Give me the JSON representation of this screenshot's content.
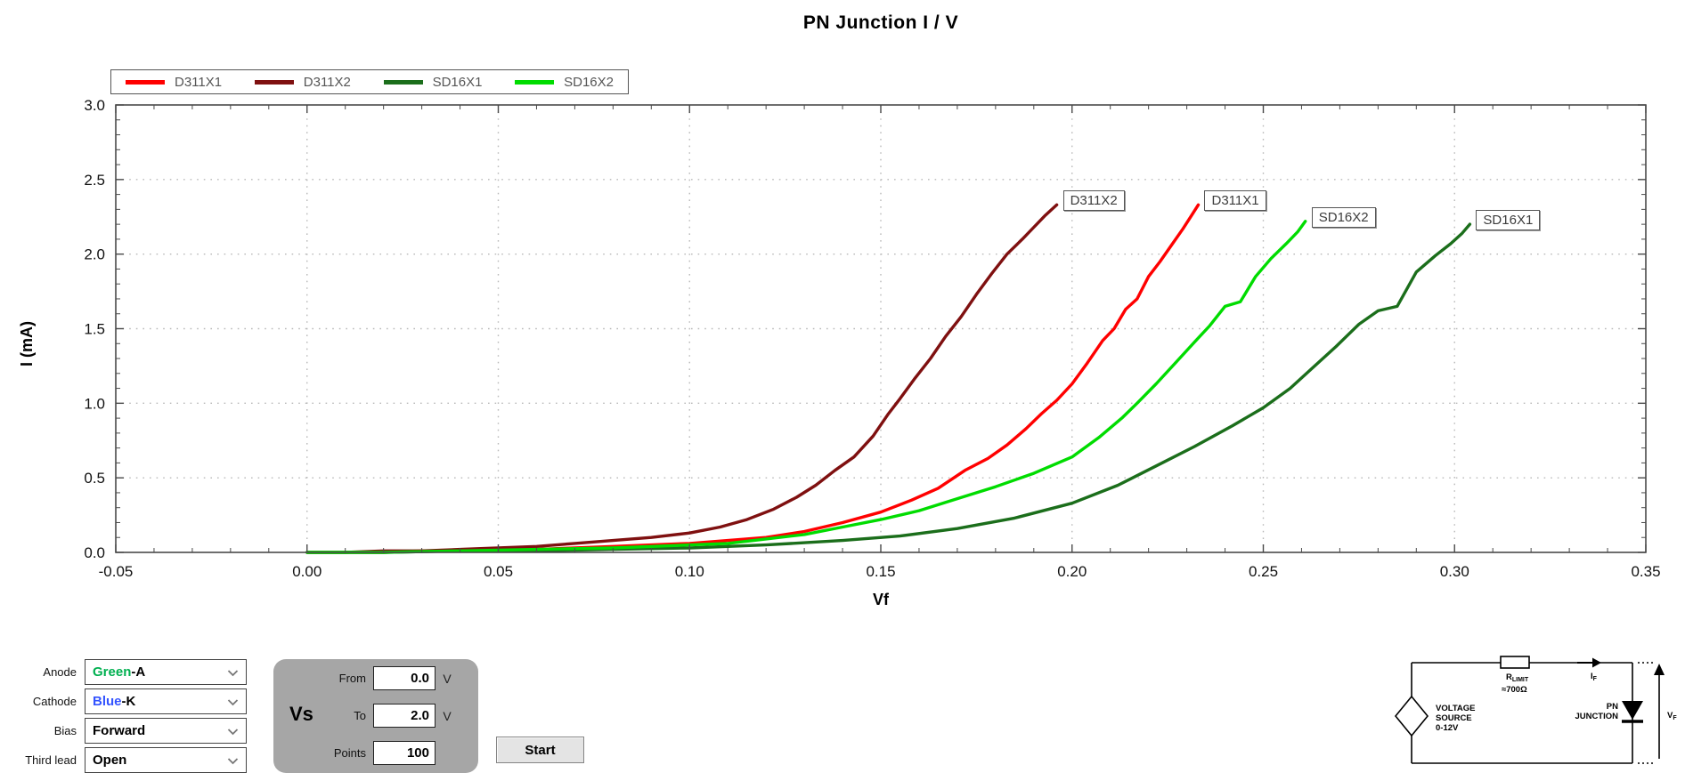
{
  "title": "PN Junction I / V",
  "chart_data": {
    "type": "line",
    "title": "PN Junction I / V",
    "xlabel": "Vf",
    "ylabel": "I (mA)",
    "xlim": [
      -0.05,
      0.35
    ],
    "ylim": [
      0,
      3
    ],
    "xtick_vals": [
      -0.05,
      0.0,
      0.05,
      0.1,
      0.15,
      0.2,
      0.25,
      0.3,
      0.35
    ],
    "xtick_labels": [
      "-0.05",
      "0.00",
      "0.05",
      "0.10",
      "0.15",
      "0.20",
      "0.25",
      "0.30",
      "0.35"
    ],
    "ytick_vals": [
      0,
      0.5,
      1.0,
      1.5,
      2.0,
      2.5,
      3.0
    ],
    "ytick_labels": [
      "0.0",
      "0.5",
      "1.0",
      "1.5",
      "2.0",
      "2.5",
      "3.0"
    ],
    "x_minor_step": 0.01,
    "y_minor_step": 0.1,
    "grid": "dotted",
    "legend_position": "top-left",
    "series": [
      {
        "name": "D311X1",
        "color": "#FF0000",
        "points": [
          [
            0,
            0
          ],
          [
            0.01,
            0
          ],
          [
            0.02,
            0
          ],
          [
            0.03,
            0.01
          ],
          [
            0.04,
            0.01
          ],
          [
            0.05,
            0.02
          ],
          [
            0.06,
            0.02
          ],
          [
            0.07,
            0.03
          ],
          [
            0.08,
            0.04
          ],
          [
            0.09,
            0.05
          ],
          [
            0.1,
            0.06
          ],
          [
            0.11,
            0.08
          ],
          [
            0.12,
            0.1
          ],
          [
            0.13,
            0.14
          ],
          [
            0.14,
            0.2
          ],
          [
            0.15,
            0.27
          ],
          [
            0.158,
            0.35
          ],
          [
            0.165,
            0.43
          ],
          [
            0.172,
            0.55
          ],
          [
            0.178,
            0.63
          ],
          [
            0.183,
            0.72
          ],
          [
            0.188,
            0.83
          ],
          [
            0.192,
            0.93
          ],
          [
            0.196,
            1.02
          ],
          [
            0.2,
            1.13
          ],
          [
            0.204,
            1.27
          ],
          [
            0.208,
            1.42
          ],
          [
            0.211,
            1.5
          ],
          [
            0.214,
            1.63
          ],
          [
            0.217,
            1.7
          ],
          [
            0.22,
            1.85
          ],
          [
            0.223,
            1.95
          ],
          [
            0.226,
            2.06
          ],
          [
            0.229,
            2.17
          ],
          [
            0.231,
            2.25
          ],
          [
            0.233,
            2.33
          ]
        ]
      },
      {
        "name": "D311X2",
        "color": "#7F1010",
        "points": [
          [
            0,
            0
          ],
          [
            0.01,
            0
          ],
          [
            0.02,
            0.01
          ],
          [
            0.03,
            0.01
          ],
          [
            0.04,
            0.02
          ],
          [
            0.05,
            0.03
          ],
          [
            0.06,
            0.04
          ],
          [
            0.07,
            0.06
          ],
          [
            0.08,
            0.08
          ],
          [
            0.09,
            0.1
          ],
          [
            0.1,
            0.13
          ],
          [
            0.108,
            0.17
          ],
          [
            0.115,
            0.22
          ],
          [
            0.122,
            0.29
          ],
          [
            0.128,
            0.37
          ],
          [
            0.133,
            0.45
          ],
          [
            0.138,
            0.55
          ],
          [
            0.143,
            0.64
          ],
          [
            0.148,
            0.78
          ],
          [
            0.152,
            0.93
          ],
          [
            0.155,
            1.03
          ],
          [
            0.159,
            1.17
          ],
          [
            0.163,
            1.3
          ],
          [
            0.167,
            1.45
          ],
          [
            0.171,
            1.58
          ],
          [
            0.175,
            1.73
          ],
          [
            0.179,
            1.87
          ],
          [
            0.183,
            2.0
          ],
          [
            0.187,
            2.1
          ],
          [
            0.19,
            2.18
          ],
          [
            0.193,
            2.26
          ],
          [
            0.196,
            2.33
          ]
        ]
      },
      {
        "name": "SD16X1",
        "color": "#1B6E1B",
        "points": [
          [
            0,
            0
          ],
          [
            0.02,
            0
          ],
          [
            0.04,
            0.01
          ],
          [
            0.06,
            0.01
          ],
          [
            0.08,
            0.02
          ],
          [
            0.1,
            0.03
          ],
          [
            0.12,
            0.05
          ],
          [
            0.14,
            0.08
          ],
          [
            0.155,
            0.11
          ],
          [
            0.17,
            0.16
          ],
          [
            0.185,
            0.23
          ],
          [
            0.2,
            0.33
          ],
          [
            0.212,
            0.45
          ],
          [
            0.222,
            0.58
          ],
          [
            0.232,
            0.71
          ],
          [
            0.242,
            0.85
          ],
          [
            0.25,
            0.97
          ],
          [
            0.257,
            1.1
          ],
          [
            0.263,
            1.24
          ],
          [
            0.269,
            1.38
          ],
          [
            0.275,
            1.53
          ],
          [
            0.28,
            1.62
          ],
          [
            0.285,
            1.65
          ],
          [
            0.29,
            1.88
          ],
          [
            0.295,
            1.99
          ],
          [
            0.299,
            2.07
          ],
          [
            0.302,
            2.14
          ],
          [
            0.304,
            2.2
          ]
        ]
      },
      {
        "name": "SD16X2",
        "color": "#00DC00",
        "points": [
          [
            0,
            0
          ],
          [
            0.02,
            0
          ],
          [
            0.04,
            0.01
          ],
          [
            0.06,
            0.02
          ],
          [
            0.08,
            0.03
          ],
          [
            0.1,
            0.05
          ],
          [
            0.11,
            0.06
          ],
          [
            0.12,
            0.09
          ],
          [
            0.13,
            0.12
          ],
          [
            0.14,
            0.17
          ],
          [
            0.15,
            0.22
          ],
          [
            0.16,
            0.28
          ],
          [
            0.17,
            0.36
          ],
          [
            0.18,
            0.44
          ],
          [
            0.19,
            0.53
          ],
          [
            0.2,
            0.64
          ],
          [
            0.207,
            0.77
          ],
          [
            0.213,
            0.9
          ],
          [
            0.217,
            1.0
          ],
          [
            0.222,
            1.13
          ],
          [
            0.227,
            1.27
          ],
          [
            0.232,
            1.41
          ],
          [
            0.236,
            1.52
          ],
          [
            0.24,
            1.65
          ],
          [
            0.244,
            1.68
          ],
          [
            0.248,
            1.85
          ],
          [
            0.252,
            1.97
          ],
          [
            0.256,
            2.07
          ],
          [
            0.259,
            2.15
          ],
          [
            0.261,
            2.22
          ]
        ]
      }
    ]
  },
  "controls": {
    "dropdowns": [
      {
        "label": "Anode",
        "value": "Green",
        "suffix": "-A",
        "value_color": "#00B050"
      },
      {
        "label": "Cathode",
        "value": "Blue",
        "suffix": "-K",
        "value_color": "#3353FF"
      },
      {
        "label": "Bias",
        "value": "Forward",
        "suffix": "",
        "value_color": "#000000"
      },
      {
        "label": "Third lead",
        "value": "Open",
        "suffix": "",
        "value_color": "#000000"
      }
    ],
    "vs_panel": {
      "title": "Vs",
      "rows": [
        {
          "label": "From",
          "value": "0.0",
          "unit": "V"
        },
        {
          "label": "To",
          "value": "2.0",
          "unit": "V"
        },
        {
          "label": "Points",
          "value": "100",
          "unit": ""
        }
      ]
    },
    "start_button": "Start"
  },
  "circuit": {
    "source_lines": [
      "VOLTAGE",
      "SOURCE",
      "0-12V"
    ],
    "resistor_name": "R",
    "resistor_sub": "LIMIT",
    "resistor_value": "≈700Ω",
    "current_name": "I",
    "current_sub": "F",
    "diode_lines": [
      "PN",
      "JUNCTION"
    ],
    "voltage_name": "V",
    "voltage_sub": "F"
  }
}
